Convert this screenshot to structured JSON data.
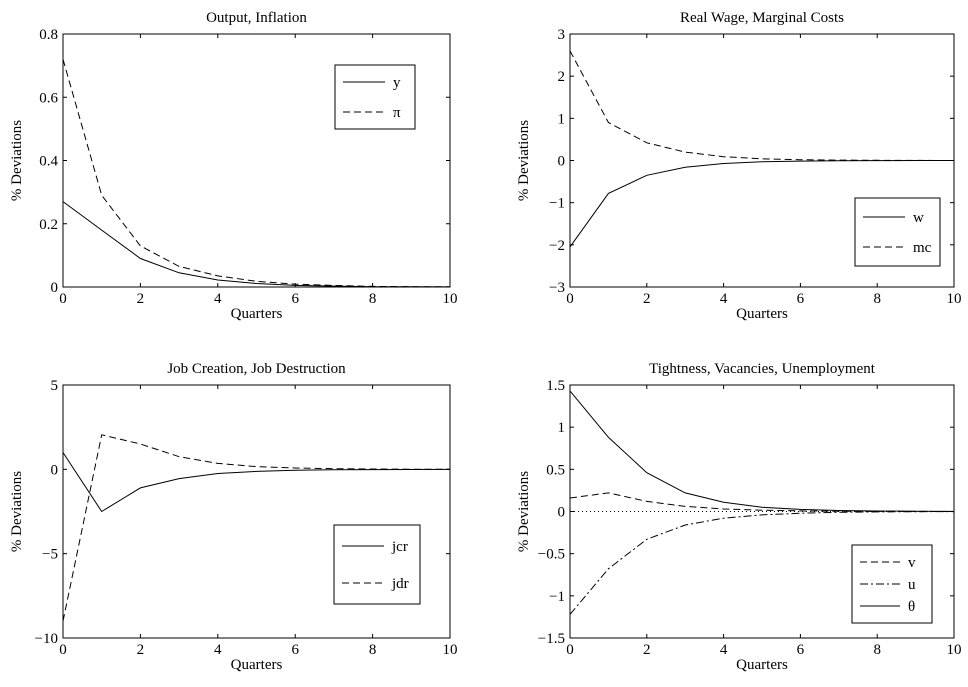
{
  "chart_data": [
    {
      "type": "line",
      "title": "Output, Inflation",
      "xlabel": "Quarters",
      "ylabel": "% Deviations",
      "xlim": [
        0,
        10
      ],
      "ylim": [
        0,
        0.8
      ],
      "xticks": [
        0,
        2,
        4,
        6,
        8,
        10
      ],
      "yticks": [
        0,
        0.2,
        0.4,
        0.6,
        0.8
      ],
      "ytick_labels": [
        "0",
        "0.2",
        "0.4",
        "0.6",
        "0.8"
      ],
      "legend_position": "top-right",
      "x": [
        0,
        1,
        2,
        3,
        4,
        5,
        6,
        7,
        8,
        9,
        10
      ],
      "series": [
        {
          "name": "y",
          "style": "solid",
          "values": [
            0.27,
            0.18,
            0.09,
            0.045,
            0.022,
            0.011,
            0.005,
            0.003,
            0.001,
            0.0005,
            0.0002
          ]
        },
        {
          "name": "π",
          "style": "dashed",
          "values": [
            0.72,
            0.29,
            0.13,
            0.065,
            0.035,
            0.018,
            0.009,
            0.005,
            0.002,
            0.001,
            0.0005
          ]
        }
      ]
    },
    {
      "type": "line",
      "title": "Real Wage, Marginal Costs",
      "xlabel": "Quarters",
      "ylabel": "% Deviations",
      "xlim": [
        0,
        10
      ],
      "ylim": [
        -3,
        3
      ],
      "xticks": [
        0,
        2,
        4,
        6,
        8,
        10
      ],
      "yticks": [
        -3,
        -2,
        -1,
        0,
        1,
        2,
        3
      ],
      "ytick_labels": [
        "−3",
        "−2",
        "−1",
        "0",
        "1",
        "2",
        "3"
      ],
      "legend_position": "bottom-right",
      "x": [
        0,
        1,
        2,
        3,
        4,
        5,
        6,
        7,
        8,
        9,
        10
      ],
      "series": [
        {
          "name": "w",
          "style": "solid",
          "values": [
            -2.05,
            -0.78,
            -0.35,
            -0.16,
            -0.07,
            -0.03,
            -0.015,
            -0.007,
            -0.003,
            -0.001,
            0
          ]
        },
        {
          "name": "mc",
          "style": "dashed",
          "values": [
            2.6,
            0.9,
            0.42,
            0.2,
            0.09,
            0.04,
            0.02,
            0.01,
            0.004,
            0.002,
            0.001
          ]
        }
      ]
    },
    {
      "type": "line",
      "title": "Job Creation, Job Destruction",
      "xlabel": "Quarters",
      "ylabel": "% Deviations",
      "xlim": [
        0,
        10
      ],
      "ylim": [
        -10,
        5
      ],
      "xticks": [
        0,
        2,
        4,
        6,
        8,
        10
      ],
      "yticks": [
        -10,
        -5,
        0,
        5
      ],
      "ytick_labels": [
        "−10",
        "−5",
        "0",
        "5"
      ],
      "legend_position": "bottom-right",
      "x": [
        0,
        1,
        2,
        3,
        4,
        5,
        6,
        7,
        8,
        9,
        10
      ],
      "series": [
        {
          "name": "jcr",
          "style": "solid",
          "values": [
            1.0,
            -2.5,
            -1.1,
            -0.55,
            -0.25,
            -0.12,
            -0.06,
            -0.03,
            -0.015,
            -0.007,
            -0.003
          ]
        },
        {
          "name": "jdr",
          "style": "dashed",
          "values": [
            -9.0,
            2.05,
            1.5,
            0.75,
            0.35,
            0.16,
            0.08,
            0.04,
            0.02,
            0.01,
            0.005
          ]
        }
      ]
    },
    {
      "type": "line",
      "title": "Tightness, Vacancies, Unemployment",
      "xlabel": "Quarters",
      "ylabel": "% Deviations",
      "xlim": [
        0,
        10
      ],
      "ylim": [
        -1.5,
        1.5
      ],
      "xticks": [
        0,
        2,
        4,
        6,
        8,
        10
      ],
      "yticks": [
        -1.5,
        -1,
        -0.5,
        0,
        0.5,
        1,
        1.5
      ],
      "ytick_labels": [
        "−1.5",
        "−1",
        "−0.5",
        "0",
        "0.5",
        "1",
        "1.5"
      ],
      "legend_position": "bottom-right",
      "zero_line": "dotted",
      "x": [
        0,
        1,
        2,
        3,
        4,
        5,
        6,
        7,
        8,
        9,
        10
      ],
      "series": [
        {
          "name": "v",
          "style": "dashed",
          "values": [
            0.16,
            0.22,
            0.12,
            0.06,
            0.03,
            0.015,
            0.007,
            0.003,
            0.0015,
            0.0007,
            0.0003
          ]
        },
        {
          "name": "u",
          "style": "dashdot",
          "values": [
            -1.22,
            -0.68,
            -0.33,
            -0.16,
            -0.08,
            -0.04,
            -0.02,
            -0.01,
            -0.005,
            -0.002,
            -0.001
          ]
        },
        {
          "name": "θ",
          "style": "solid",
          "values": [
            1.43,
            0.88,
            0.46,
            0.22,
            0.11,
            0.05,
            0.025,
            0.012,
            0.006,
            0.003,
            0.0015
          ]
        }
      ]
    }
  ]
}
